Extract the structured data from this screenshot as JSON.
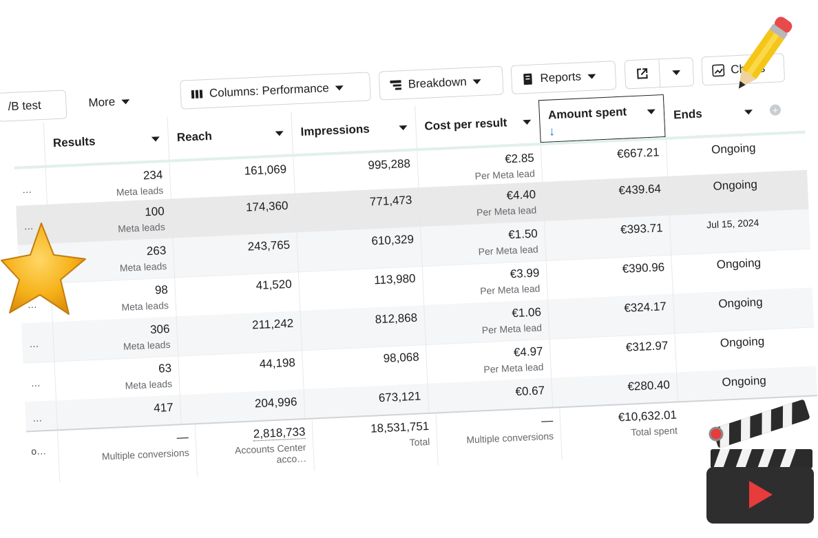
{
  "toolbar": {
    "test_tab": "/B test",
    "more": "More",
    "columns": "Columns: Performance",
    "breakdown": "Breakdown",
    "reports": "Reports",
    "charts": "Charts"
  },
  "columns": {
    "results": "Results",
    "reach": "Reach",
    "impressions": "Impressions",
    "cost_per_result": "Cost per result",
    "amount_spent": "Amount spent",
    "ends": "Ends",
    "sort_arrow": "↓"
  },
  "rows": [
    {
      "lead": "…",
      "results": "234",
      "results_sub": "Meta leads",
      "reach": "161,069",
      "impressions": "995,288",
      "cpr": "€2.85",
      "cpr_sub": "Per Meta lead",
      "spent": "€667.21",
      "ends": "Ongoing"
    },
    {
      "lead": "…",
      "results": "100",
      "results_sub": "Meta leads",
      "reach": "174,360",
      "impressions": "771,473",
      "cpr": "€4.40",
      "cpr_sub": "Per Meta lead",
      "spent": "€439.64",
      "ends": "Ongoing"
    },
    {
      "lead": "…",
      "results": "263",
      "results_sub": "Meta leads",
      "reach": "243,765",
      "impressions": "610,329",
      "cpr": "€1.50",
      "cpr_sub": "Per Meta lead",
      "spent": "€393.71",
      "ends": "Jul 15, 2024"
    },
    {
      "lead": "…",
      "results": "98",
      "results_sub": "Meta leads",
      "reach": "41,520",
      "impressions": "113,980",
      "cpr": "€3.99",
      "cpr_sub": "Per Meta lead",
      "spent": "€390.96",
      "ends": "Ongoing"
    },
    {
      "lead": "…",
      "results": "306",
      "results_sub": "Meta leads",
      "reach": "211,242",
      "impressions": "812,868",
      "cpr": "€1.06",
      "cpr_sub": "Per Meta lead",
      "spent": "€324.17",
      "ends": "Ongoing"
    },
    {
      "lead": "…",
      "results": "63",
      "results_sub": "Meta leads",
      "reach": "44,198",
      "impressions": "98,068",
      "cpr": "€4.97",
      "cpr_sub": "Per Meta lead",
      "spent": "€312.97",
      "ends": "Ongoing"
    },
    {
      "lead": "…",
      "results": "417",
      "results_sub": "",
      "reach": "204,996",
      "impressions": "673,121",
      "cpr": "€0.67",
      "cpr_sub": "",
      "spent": "€280.40",
      "ends": "Ongoing"
    }
  ],
  "summary": {
    "lead": "o…",
    "results": "—",
    "results_sub": "Multiple conversions",
    "reach": "2,818,733",
    "reach_sub": "Accounts Center acco…",
    "impressions": "18,531,751",
    "impressions_sub": "Total",
    "cpr": "—",
    "cpr_sub": "Multiple conversions",
    "spent": "€10,632.01",
    "spent_sub": "Total spent"
  },
  "colors": {
    "sort_arrow": "#1877f2",
    "highlight_row": "#e9e9ea",
    "star": "#f6b21a",
    "clapper": "#2b2b2b",
    "play": "#e83b3b",
    "pencil": "#f5c518"
  },
  "icons": [
    "columns-icon",
    "breakdown-icon",
    "reports-icon",
    "export-icon",
    "chart-icon",
    "star-sticker",
    "pencil-sticker",
    "clapperboard-sticker"
  ]
}
